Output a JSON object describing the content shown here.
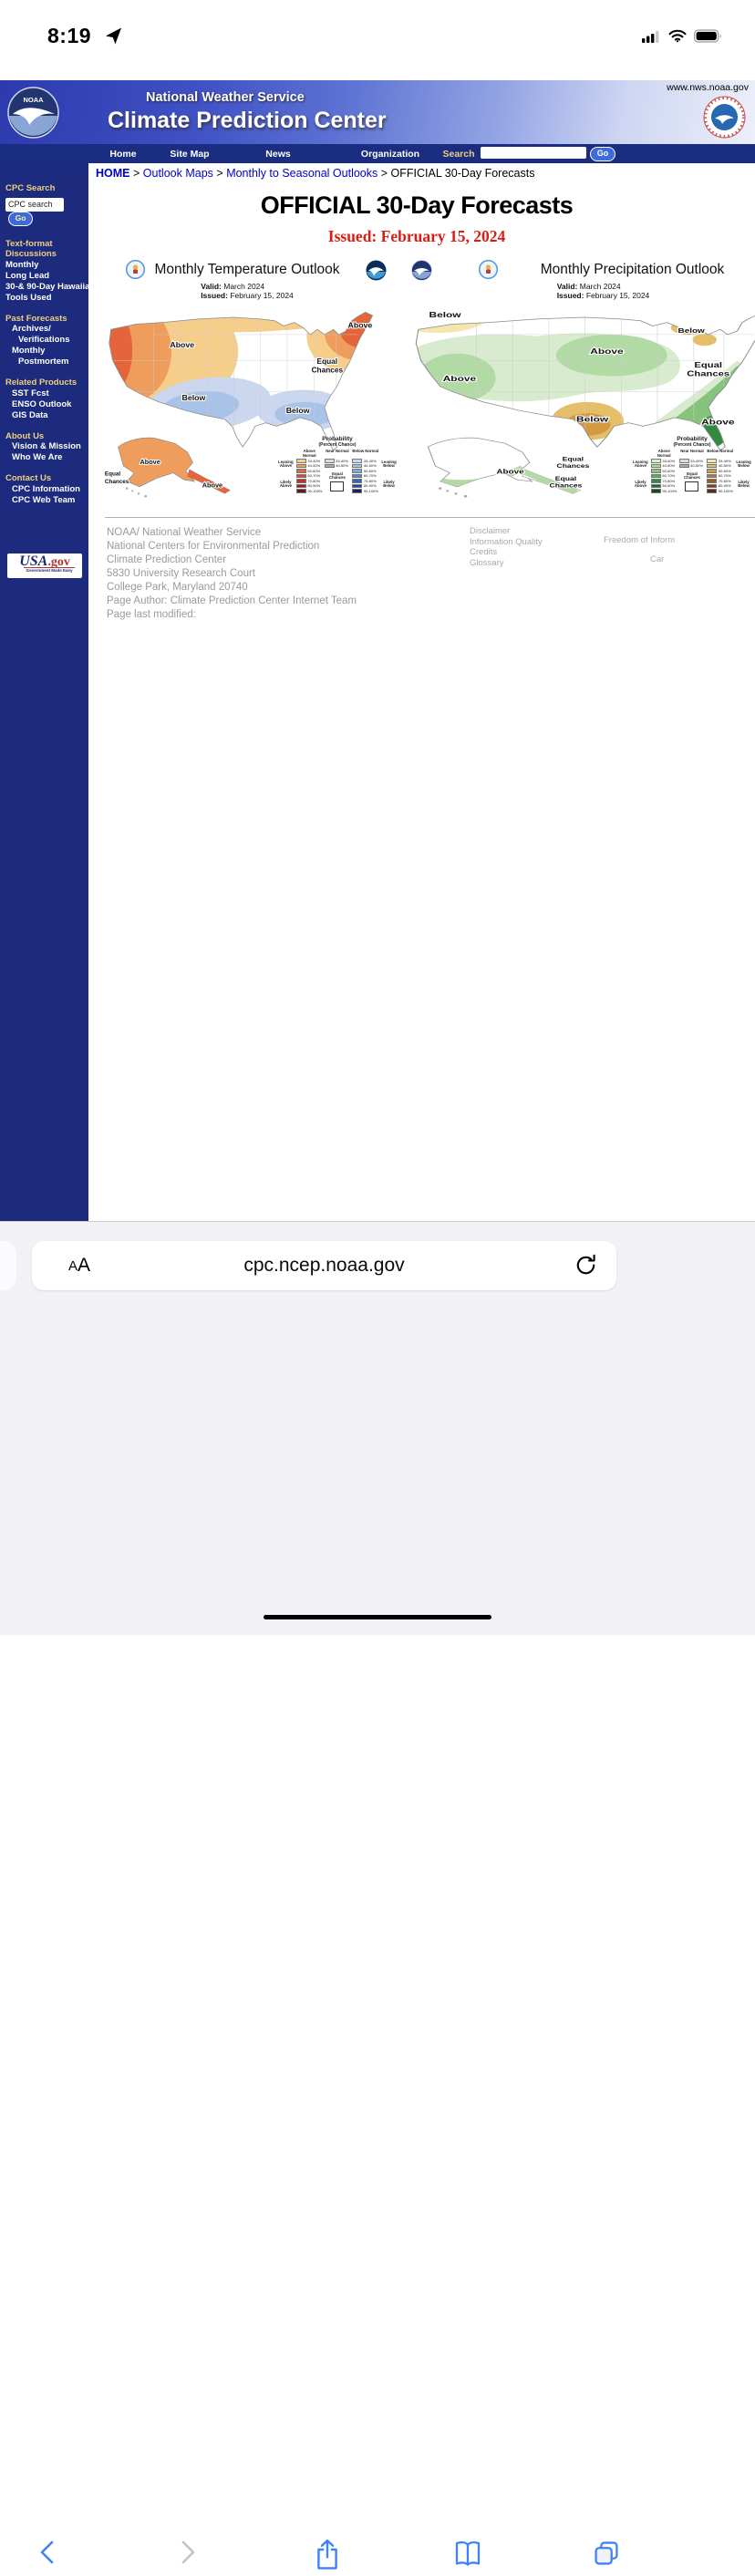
{
  "colors": {
    "navy": "#1b2d80",
    "sidebar_navy": "#1c2b7e",
    "sidebar_gold": "#efcf7e",
    "link_blue": "#0000cc",
    "issued_red": "#de1b12",
    "ios_blue": "#3e82f7",
    "chrome_gray": "#f2f1f6"
  },
  "status_bar": {
    "time": "8:19"
  },
  "header": {
    "site_link": "www.nws.noaa.gov",
    "agency": "National Weather Service",
    "title": "Climate Prediction Center"
  },
  "nav": {
    "items": [
      "Home",
      "Site Map",
      "News",
      "Organization"
    ],
    "search_label": "Search",
    "go": "Go"
  },
  "breadcrumb": {
    "home": "HOME",
    "sep": ">",
    "link2": "Outlook Maps",
    "link3": "Monthly to Seasonal Outlooks",
    "current": "OFFICIAL 30-Day Forecasts"
  },
  "sidebar": {
    "search": {
      "heading": "CPC Search",
      "value": "CPC search",
      "go": "Go"
    },
    "discussions": {
      "heading1": "Text-format",
      "heading2": "Discussions",
      "items": [
        "Monthly",
        "Long Lead",
        "30-& 90-Day Hawaiian",
        "Tools Used"
      ]
    },
    "past": {
      "heading": "Past Forecasts",
      "item1": "Archives/",
      "item2": "Verifications",
      "item3": "Monthly",
      "item4": "Postmortem"
    },
    "related": {
      "heading": "Related Products",
      "items": [
        "SST Fcst",
        "ENSO Outlook",
        "GIS Data"
      ]
    },
    "about": {
      "heading": "About Us",
      "items": [
        "Vision & Mission",
        "Who We Are"
      ]
    },
    "contact": {
      "heading": "Contact Us",
      "items": [
        "CPC Information",
        "CPC Web Team"
      ]
    },
    "usagov": {
      "usa": "USA",
      "gov": ".gov",
      "tagline": "Government Made Easy"
    }
  },
  "page": {
    "title": "OFFICIAL 30-Day Forecasts",
    "issued": "Issued: February 15, 2024"
  },
  "maps": [
    {
      "title": "Monthly Temperature Outlook",
      "valid_label": "Valid:",
      "valid": "March 2024",
      "issued_label": "Issued:",
      "issued": "February 15, 2024",
      "labels": {
        "above": "Above",
        "below": "Below",
        "equal1": "Equal",
        "equal2": "Chances"
      },
      "legend": {
        "title1": "Probability",
        "title2": "(Percent Chance)",
        "headers": {
          "above": "Above Normal",
          "near": "Near Normal",
          "below": "Below Normal"
        },
        "leaning_above": "Leaning Above",
        "likely_above": "Likely Above",
        "leaning_below": "Leaning Below",
        "likely_below": "Likely Below",
        "equal_chances": "Equal Chances",
        "above_rows": [
          {
            "range": "33-40%",
            "color": "#F6CE8C"
          },
          {
            "range": "40-50%",
            "color": "#EE9D5C"
          },
          {
            "range": "50-60%",
            "color": "#E4653C"
          },
          {
            "range": "60-70%",
            "color": "#D94334"
          },
          {
            "range": "70-80%",
            "color": "#C22D29"
          },
          {
            "range": "80-90%",
            "color": "#9A1C20"
          },
          {
            "range": "90-100%",
            "color": "#701517"
          }
        ],
        "near_rows": [
          {
            "range": "33-40%",
            "color": "#DCDCDC"
          },
          {
            "range": "40-50%",
            "color": "#A9A9A9"
          }
        ],
        "below_rows": [
          {
            "range": "33-40%",
            "color": "#CBD7EE"
          },
          {
            "range": "40-50%",
            "color": "#A9C2E8"
          },
          {
            "range": "50-60%",
            "color": "#7FA8DC"
          },
          {
            "range": "60-70%",
            "color": "#5588CC"
          },
          {
            "range": "70-80%",
            "color": "#3366BB"
          },
          {
            "range": "80-90%",
            "color": "#224499"
          },
          {
            "range": "90-100%",
            "color": "#14226E"
          }
        ]
      }
    },
    {
      "title": "Monthly Precipitation Outlook",
      "valid_label": "Valid:",
      "valid": "March 2024",
      "issued_label": "Issued:",
      "issued": "February 15, 2024",
      "labels": {
        "above": "Above",
        "below": "Below",
        "equal1": "Equal",
        "equal2": "Chances"
      },
      "legend": {
        "title1": "Probability",
        "title2": "(Percent Chance)",
        "headers": {
          "above": "Above Normal",
          "near": "Near Normal",
          "below": "Below Normal"
        },
        "leaning_above": "Leaning Above",
        "likely_above": "Likely Above",
        "leaning_below": "Leaning Below",
        "likely_below": "Likely Below",
        "equal_chances": "Equal Chances",
        "above_rows": [
          {
            "range": "33-40%",
            "color": "#D8EBCF"
          },
          {
            "range": "40-50%",
            "color": "#B2DAA4"
          },
          {
            "range": "50-60%",
            "color": "#86C47C"
          },
          {
            "range": "60-70%",
            "color": "#57AE57"
          },
          {
            "range": "70-80%",
            "color": "#338A3E"
          },
          {
            "range": "80-90%",
            "color": "#1F6A2E"
          },
          {
            "range": "90-100%",
            "color": "#124A20"
          }
        ],
        "near_rows": [
          {
            "range": "33-40%",
            "color": "#DCDCDC"
          },
          {
            "range": "40-50%",
            "color": "#A9A9A9"
          }
        ],
        "below_rows": [
          {
            "range": "33-40%",
            "color": "#F4E6AC"
          },
          {
            "range": "40-50%",
            "color": "#E5BE6A"
          },
          {
            "range": "50-60%",
            "color": "#D29A42"
          },
          {
            "range": "60-70%",
            "color": "#B97831"
          },
          {
            "range": "70-80%",
            "color": "#9C5A24"
          },
          {
            "range": "80-90%",
            "color": "#7E401A"
          },
          {
            "range": "90-100%",
            "color": "#5E2B12"
          }
        ]
      }
    }
  ],
  "footer": {
    "address": [
      "NOAA/ National Weather Service",
      "National Centers for Environmental Prediction",
      "Climate Prediction Center",
      "5830 University Research Court",
      "College Park, Maryland 20740",
      "Page Author: Climate Prediction Center Internet Team",
      "Page last modified:"
    ],
    "links": [
      "Disclaimer",
      "Information Quality",
      "Credits",
      "Glossary"
    ],
    "link_right1": "Freedom of Inform",
    "link_right2": "Car"
  },
  "browser": {
    "url": "cpc.ncep.noaa.gov",
    "reader_small": "A",
    "reader_large": "A"
  }
}
